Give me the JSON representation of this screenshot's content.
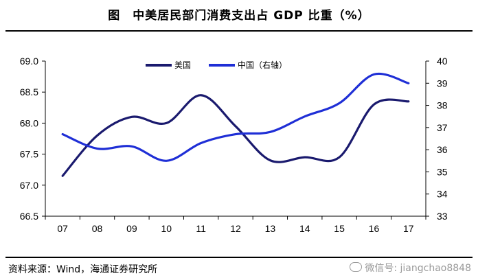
{
  "title": "图　中美居民部门消费支出占 GDP 比重（%）",
  "source": "资料来源：Wind，海通证券研究所",
  "watermark": "微信号: jiangchao8848",
  "colors": {
    "us": "#1a1a6e",
    "cn": "#1f2fd6",
    "axis": "#000000",
    "background": "#ffffff"
  },
  "chart_data": {
    "type": "line",
    "title": "中美居民部门消费支出占 GDP 比重（%）",
    "categories": [
      "07",
      "08",
      "09",
      "10",
      "11",
      "12",
      "13",
      "14",
      "15",
      "16",
      "17"
    ],
    "series": [
      {
        "name": "美国",
        "axis": "left",
        "values": [
          67.15,
          67.8,
          68.1,
          68.0,
          68.45,
          67.95,
          67.4,
          67.45,
          67.45,
          68.3,
          68.35
        ]
      },
      {
        "name": "中国（右轴）",
        "axis": "right",
        "values": [
          36.7,
          36.05,
          36.15,
          35.5,
          36.3,
          36.7,
          36.8,
          37.5,
          38.1,
          39.4,
          39.0
        ]
      }
    ],
    "y_left": {
      "min": 66.5,
      "max": 69.0,
      "step": 0.5,
      "ticks": [
        "66.5",
        "67.0",
        "67.5",
        "68.0",
        "68.5",
        "69.0"
      ]
    },
    "y_right": {
      "min": 33,
      "max": 40,
      "step": 1,
      "ticks": [
        "33",
        "34",
        "35",
        "36",
        "37",
        "38",
        "39",
        "40"
      ]
    },
    "legend": {
      "position": "top-center",
      "entries": [
        "美国",
        "中国（右轴）"
      ]
    },
    "grid": false
  }
}
